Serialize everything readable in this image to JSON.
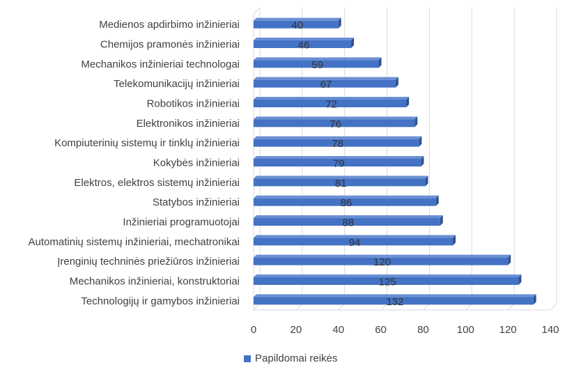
{
  "chart_data": {
    "type": "bar",
    "orientation": "horizontal",
    "categories": [
      "Medienos apdirbimo inžinieriai",
      "Chemijos pramonės inžinieriai",
      "Mechanikos inžinieriai technologai",
      "Telekomunikacijų inžinieriai",
      "Robotikos inžinieriai",
      "Elektronikos inžinieriai",
      "Kompiuterinių sistemų ir tinklų inžinieriai",
      "Kokybės inžinieriai",
      "Elektros, elektros sistemų inžinieriai",
      "Statybos inžinieriai",
      "Inžinieriai programuotojai",
      "Automatinių sistemų inžinieriai, mechatronikai",
      "Įrenginių techninės priežiūros inžinieriai",
      "Mechanikos inžinieriai, konstruktoriai",
      "Technologijų ir gamybos inžinieriai"
    ],
    "series": [
      {
        "name": "Papildomai reikės",
        "values": [
          40,
          46,
          59,
          67,
          72,
          76,
          78,
          79,
          81,
          86,
          88,
          94,
          120,
          125,
          132
        ]
      }
    ],
    "xlim": [
      0,
      140
    ],
    "xticks": [
      "0",
      "20",
      "40",
      "60",
      "80",
      "100",
      "120",
      "140"
    ],
    "title": "",
    "xlabel": "",
    "ylabel": "",
    "grid": true,
    "legend_position": "bottom",
    "colors": {
      "bar_front": "#4472c4",
      "bar_top": "#6a8fd4",
      "bar_side": "#2f528f",
      "grid": "#d9d9d9",
      "wall": "#f2f2f2"
    }
  }
}
